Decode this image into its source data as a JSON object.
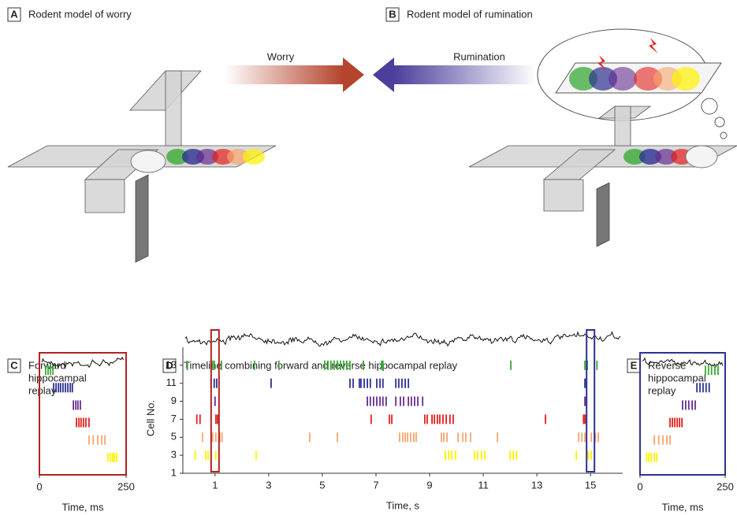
{
  "illustrations": {
    "A": {
      "letter": "A",
      "title": "Rodent model of worry",
      "arrow_label": "Worry",
      "arrow_color": "#b5442d"
    },
    "B": {
      "letter": "B",
      "title": "Rodent model of rumination",
      "arrow_label": "Rumination",
      "arrow_color": "#4b3f9c"
    }
  },
  "chart_data": [
    {
      "type": "raster",
      "letter": "C",
      "title": [
        "Forward",
        "hippocampal",
        "replay"
      ],
      "xlabel": "Time, ms",
      "xlim": [
        0,
        250
      ],
      "xticks": [
        0,
        250
      ],
      "ylim": [
        1,
        15
      ],
      "box_color": "#b22222",
      "series": [
        {
          "color": "#3aaa35",
          "row": 13,
          "x": [
            18,
            25,
            32,
            39
          ]
        },
        {
          "color": "#2e3192",
          "row": 11,
          "x": [
            41,
            48,
            55,
            61,
            68,
            75,
            82,
            89,
            95
          ]
        },
        {
          "color": "#662d91",
          "row": 9,
          "x": [
            98,
            105,
            111,
            118
          ]
        },
        {
          "color": "#e3201b",
          "row": 7,
          "x": [
            107,
            114,
            120,
            127,
            134,
            143
          ]
        },
        {
          "color": "#f7a56d",
          "row": 5,
          "x": [
            143,
            155,
            168,
            180,
            189
          ]
        },
        {
          "color": "#fff200",
          "row": 3,
          "x": [
            198,
            205,
            211,
            216,
            223
          ]
        }
      ]
    },
    {
      "type": "raster",
      "letter": "D",
      "title": [
        "Timeline combining forward and reverse hippocampal replay"
      ],
      "xlabel": "Time, s",
      "ylabel": "Cell No.",
      "xlim": [
        -0.2,
        16.2
      ],
      "xticks": [
        1,
        3,
        5,
        7,
        9,
        11,
        13,
        15
      ],
      "ylim": [
        1,
        15
      ],
      "yticks": [
        1,
        3,
        5,
        7,
        9,
        11,
        13
      ],
      "highlights": [
        {
          "x": 1,
          "color": "#b22222"
        },
        {
          "x": 15,
          "color": "#2e3192"
        }
      ],
      "series": [
        {
          "color": "#3aaa35",
          "row": 13,
          "x": [
            -0.03,
            0.91,
            0.97,
            1.24,
            2.47,
            3.38,
            5.09,
            5.21,
            5.32,
            5.44,
            5.56,
            5.68,
            5.79,
            5.91,
            6.03,
            6.53,
            7.21,
            7.26,
            12.03,
            14.79,
            14.88,
            15.24
          ]
        },
        {
          "color": "#2e3192",
          "row": 11,
          "x": [
            0.85,
            0.97,
            1.06,
            3.09,
            6.03,
            6.15,
            6.38,
            6.44,
            6.56,
            6.68,
            6.79,
            7.03,
            7.15,
            7.26,
            7.74,
            7.85,
            7.97,
            8.09,
            8.21,
            14.79,
            14.85
          ]
        },
        {
          "color": "#662d91",
          "row": 9,
          "x": [
            1.0,
            6.68,
            6.79,
            6.91,
            7.03,
            7.15,
            7.26,
            7.38,
            7.74,
            7.91,
            8.03,
            8.21,
            8.32,
            8.44,
            8.56,
            8.74,
            14.79,
            14.85
          ]
        },
        {
          "color": "#e3201b",
          "row": 7,
          "x": [
            0.32,
            0.44,
            1.03,
            1.09,
            6.82,
            7.5,
            7.59,
            8.82,
            8.91,
            9.09,
            9.18,
            9.29,
            9.38,
            9.5,
            9.62,
            9.76,
            9.88,
            13.32,
            14.74,
            14.79,
            14.85
          ]
        },
        {
          "color": "#f7a56d",
          "row": 5,
          "x": [
            0.53,
            0.91,
            1.03,
            1.18,
            1.26,
            4.53,
            5.56,
            7.88,
            8.0,
            8.09,
            8.18,
            8.29,
            8.41,
            8.5,
            9.44,
            9.53,
            9.65,
            10.06,
            10.24,
            10.35,
            10.53,
            11.53,
            14.56,
            14.68,
            14.79,
            15.03,
            15.18,
            15.29
          ]
        },
        {
          "color": "#fff200",
          "row": 3,
          "x": [
            0.26,
            0.65,
            0.74,
            1.03,
            2.53,
            9.59,
            9.71,
            9.82,
            9.97,
            10.68,
            10.79,
            10.94,
            11.06,
            12.0,
            12.12,
            12.24,
            14.47,
            14.91,
            15.03
          ]
        }
      ]
    },
    {
      "type": "raster",
      "letter": "E",
      "title": [
        "Reverse",
        "hippocampal",
        "replay"
      ],
      "xlabel": "Time, ms",
      "xlim": [
        0,
        250
      ],
      "xticks": [
        0,
        250
      ],
      "ylim": [
        1,
        15
      ],
      "box_color": "#2e3192",
      "series": [
        {
          "color": "#3aaa35",
          "row": 13,
          "x": [
            192,
            201,
            210,
            220,
            229
          ]
        },
        {
          "color": "#2e3192",
          "row": 11,
          "x": [
            167,
            176,
            185,
            194,
            203
          ]
        },
        {
          "color": "#662d91",
          "row": 9,
          "x": [
            125,
            134,
            143,
            153,
            162
          ]
        },
        {
          "color": "#e3201b",
          "row": 7,
          "x": [
            88,
            95,
            102,
            109,
            116,
            123
          ]
        },
        {
          "color": "#f7a56d",
          "row": 5,
          "x": [
            42,
            55,
            67,
            79,
            88
          ]
        },
        {
          "color": "#fff200",
          "row": 3,
          "x": [
            19,
            26,
            33,
            42,
            49
          ]
        }
      ]
    }
  ]
}
